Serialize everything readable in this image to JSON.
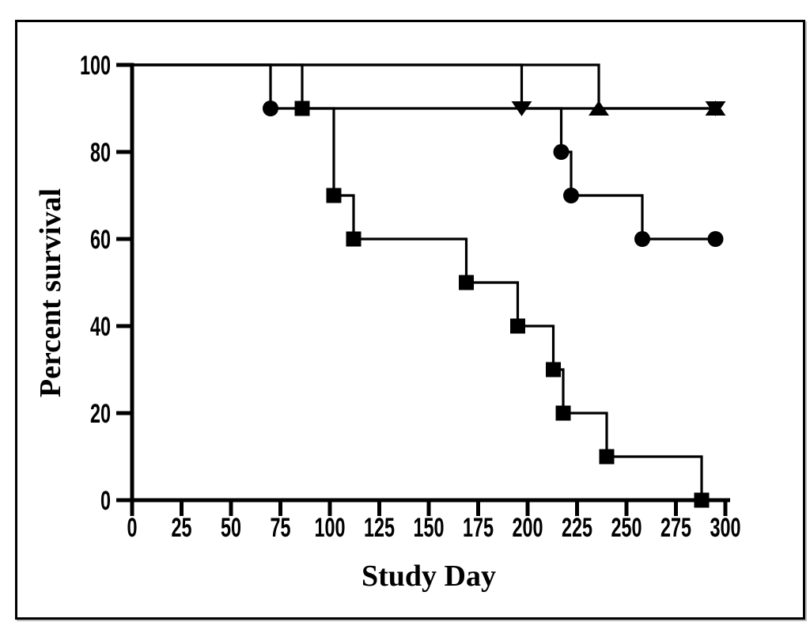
{
  "figure": {
    "background": "#ffffff",
    "border_color": "#000000"
  },
  "chart_data": {
    "type": "line",
    "subtype": "kaplan-meier-survival-step",
    "title": "",
    "xlabel": "Study Day",
    "ylabel": "Percent survival",
    "xlim": [
      0,
      300
    ],
    "ylim": [
      0,
      100
    ],
    "x_ticks": [
      0,
      25,
      50,
      75,
      100,
      125,
      150,
      175,
      200,
      225,
      250,
      275,
      300
    ],
    "y_ticks": [
      0,
      20,
      40,
      60,
      80,
      100
    ],
    "grid": false,
    "legend": "none",
    "stroke_color": "#000000",
    "series": [
      {
        "name": "circle-group",
        "marker": "circle",
        "steps": [
          [
            0,
            100
          ],
          [
            70,
            100
          ],
          [
            70,
            90
          ],
          [
            217,
            90
          ],
          [
            217,
            80
          ],
          [
            222,
            80
          ],
          [
            222,
            70
          ],
          [
            258,
            70
          ],
          [
            258,
            60
          ],
          [
            295,
            60
          ]
        ],
        "markers": [
          [
            70,
            90
          ],
          [
            217,
            80
          ],
          [
            222,
            70
          ],
          [
            258,
            60
          ],
          [
            295,
            60
          ]
        ]
      },
      {
        "name": "square-group",
        "marker": "square",
        "steps": [
          [
            0,
            100
          ],
          [
            86,
            100
          ],
          [
            86,
            90
          ],
          [
            102,
            90
          ],
          [
            102,
            70
          ],
          [
            112,
            70
          ],
          [
            112,
            60
          ],
          [
            169,
            60
          ],
          [
            169,
            50
          ],
          [
            195,
            50
          ],
          [
            195,
            40
          ],
          [
            213,
            40
          ],
          [
            213,
            30
          ],
          [
            218,
            30
          ],
          [
            218,
            20
          ],
          [
            240,
            20
          ],
          [
            240,
            10
          ],
          [
            288,
            10
          ],
          [
            288,
            0
          ]
        ],
        "markers": [
          [
            86,
            90
          ],
          [
            102,
            70
          ],
          [
            112,
            60
          ],
          [
            169,
            50
          ],
          [
            195,
            40
          ],
          [
            213,
            30
          ],
          [
            218,
            20
          ],
          [
            240,
            10
          ],
          [
            288,
            0
          ]
        ]
      },
      {
        "name": "triangle-down-group",
        "marker": "triangle-down",
        "steps": [
          [
            0,
            100
          ],
          [
            197,
            100
          ],
          [
            197,
            90
          ],
          [
            295,
            90
          ]
        ],
        "markers": [
          [
            197,
            90
          ],
          [
            295,
            90
          ]
        ]
      },
      {
        "name": "triangle-up-group",
        "marker": "triangle-up",
        "steps": [
          [
            0,
            100
          ],
          [
            236,
            100
          ],
          [
            236,
            90
          ],
          [
            295,
            90
          ]
        ],
        "markers": [
          [
            236,
            90
          ],
          [
            295,
            90
          ]
        ]
      }
    ]
  }
}
